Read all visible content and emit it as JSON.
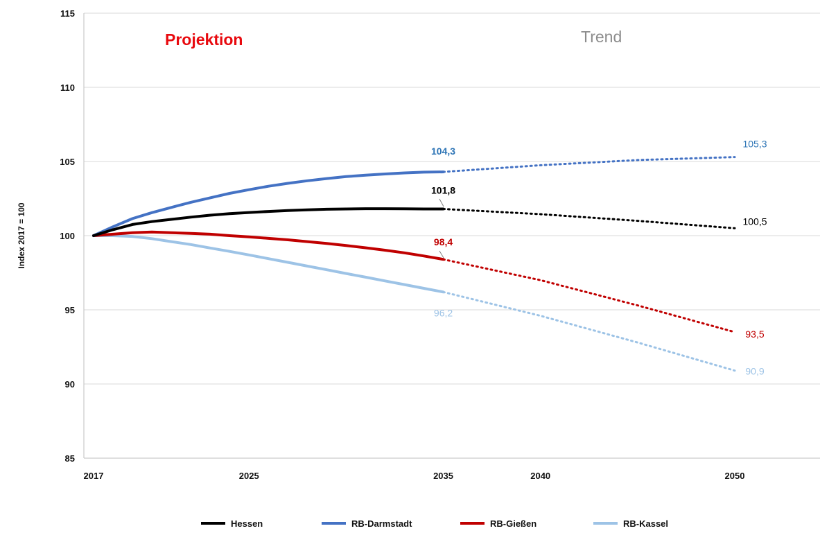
{
  "chart_data": {
    "type": "line",
    "ylabel": "Index 2017 = 100",
    "ylim": [
      85,
      115
    ],
    "yticks": [
      85,
      90,
      95,
      100,
      105,
      110,
      115
    ],
    "xticks": [
      2017,
      2025,
      2035,
      2040,
      2050
    ],
    "xlim": [
      2017,
      2050
    ],
    "grid": "horizontal",
    "legend_position": "bottom",
    "annotations": {
      "projection": {
        "label": "Projektion",
        "color": "#e8090e"
      },
      "trend": {
        "label": "Trend",
        "color": "#8c8c8c"
      }
    },
    "projection_end": 2035,
    "series": [
      {
        "name": "Hessen",
        "color": "#000000",
        "projection": [
          [
            2017,
            100.0
          ],
          [
            2018,
            100.4
          ],
          [
            2019,
            100.75
          ],
          [
            2020,
            100.95
          ],
          [
            2021,
            101.1
          ],
          [
            2022,
            101.25
          ],
          [
            2023,
            101.38
          ],
          [
            2024,
            101.48
          ],
          [
            2025,
            101.56
          ],
          [
            2026,
            101.63
          ],
          [
            2027,
            101.69
          ],
          [
            2028,
            101.74
          ],
          [
            2029,
            101.78
          ],
          [
            2030,
            101.8
          ],
          [
            2031,
            101.82
          ],
          [
            2032,
            101.82
          ],
          [
            2033,
            101.81
          ],
          [
            2034,
            101.8
          ],
          [
            2035,
            101.8
          ]
        ],
        "trend": [
          [
            2035,
            101.8
          ],
          [
            2040,
            101.45
          ],
          [
            2045,
            101.0
          ],
          [
            2050,
            100.5
          ]
        ],
        "end_label_projection": "101,8",
        "end_label_trend": "100,5"
      },
      {
        "name": "RB-Darmstadt",
        "color": "#4472c4",
        "projection": [
          [
            2017,
            100.0
          ],
          [
            2018,
            100.6
          ],
          [
            2019,
            101.15
          ],
          [
            2020,
            101.55
          ],
          [
            2021,
            101.9
          ],
          [
            2022,
            102.25
          ],
          [
            2023,
            102.55
          ],
          [
            2024,
            102.85
          ],
          [
            2025,
            103.1
          ],
          [
            2026,
            103.33
          ],
          [
            2027,
            103.53
          ],
          [
            2028,
            103.7
          ],
          [
            2029,
            103.85
          ],
          [
            2030,
            103.98
          ],
          [
            2031,
            104.08
          ],
          [
            2032,
            104.16
          ],
          [
            2033,
            104.23
          ],
          [
            2034,
            104.28
          ],
          [
            2035,
            104.3
          ]
        ],
        "trend": [
          [
            2035,
            104.3
          ],
          [
            2040,
            104.75
          ],
          [
            2045,
            105.1
          ],
          [
            2050,
            105.3
          ]
        ],
        "end_label_projection": "104,3",
        "end_label_trend": "105,3"
      },
      {
        "name": "RB-Gießen",
        "color": "#c00000",
        "projection": [
          [
            2017,
            100.0
          ],
          [
            2018,
            100.1
          ],
          [
            2019,
            100.2
          ],
          [
            2020,
            100.25
          ],
          [
            2021,
            100.2
          ],
          [
            2022,
            100.15
          ],
          [
            2023,
            100.1
          ],
          [
            2024,
            100.0
          ],
          [
            2025,
            99.92
          ],
          [
            2026,
            99.82
          ],
          [
            2027,
            99.72
          ],
          [
            2028,
            99.6
          ],
          [
            2029,
            99.47
          ],
          [
            2030,
            99.33
          ],
          [
            2031,
            99.18
          ],
          [
            2032,
            99.02
          ],
          [
            2033,
            98.84
          ],
          [
            2034,
            98.63
          ],
          [
            2035,
            98.4
          ]
        ],
        "trend": [
          [
            2035,
            98.4
          ],
          [
            2040,
            97.0
          ],
          [
            2045,
            95.3
          ],
          [
            2050,
            93.5
          ]
        ],
        "end_label_projection": "98,4",
        "end_label_trend": "93,5"
      },
      {
        "name": "RB-Kassel",
        "color": "#9dc3e6",
        "projection": [
          [
            2017,
            100.0
          ],
          [
            2018,
            100.0
          ],
          [
            2019,
            99.95
          ],
          [
            2020,
            99.8
          ],
          [
            2021,
            99.6
          ],
          [
            2022,
            99.4
          ],
          [
            2023,
            99.17
          ],
          [
            2024,
            98.94
          ],
          [
            2025,
            98.7
          ],
          [
            2026,
            98.45
          ],
          [
            2027,
            98.2
          ],
          [
            2028,
            97.95
          ],
          [
            2029,
            97.7
          ],
          [
            2030,
            97.45
          ],
          [
            2031,
            97.2
          ],
          [
            2032,
            96.95
          ],
          [
            2033,
            96.7
          ],
          [
            2034,
            96.45
          ],
          [
            2035,
            96.2
          ]
        ],
        "trend": [
          [
            2035,
            96.2
          ],
          [
            2040,
            94.6
          ],
          [
            2045,
            92.8
          ],
          [
            2050,
            90.9
          ]
        ],
        "end_label_projection": "96,2",
        "end_label_trend": "90,9"
      }
    ]
  }
}
